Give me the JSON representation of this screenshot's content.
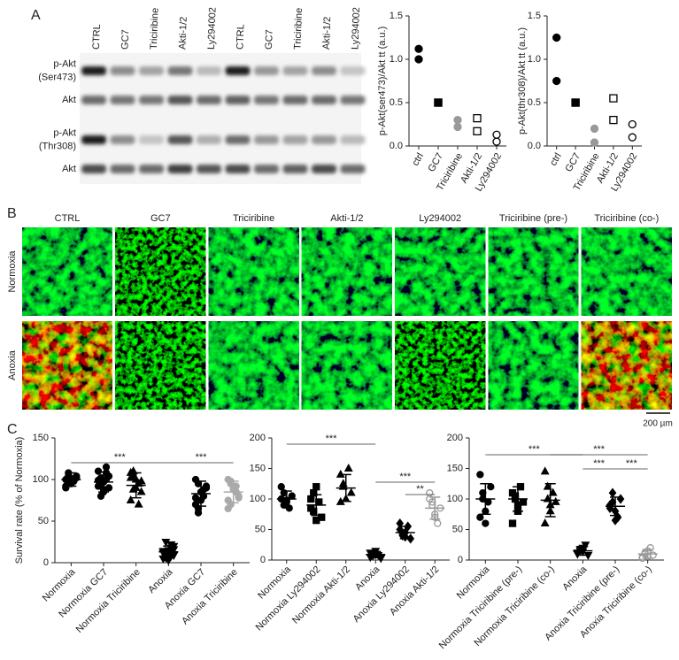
{
  "panel_labels": [
    "A",
    "B",
    "C"
  ],
  "blot": {
    "lanes": [
      "CTRL",
      "GC7",
      "Triciribine",
      "Akti-1/2",
      "Ly294002",
      "CTRL",
      "GC7",
      "Triciribine",
      "Akti-1/2",
      "Ly294002"
    ],
    "rows": [
      [
        "p-Akt",
        "(Ser473)"
      ],
      [
        "Akt"
      ],
      [
        "p-Akt",
        "(Thr308)"
      ],
      [
        "Akt"
      ]
    ]
  },
  "microscopy": {
    "columns": [
      "CTRL",
      "GC7",
      "Triciribine",
      "Akti-1/2",
      "Ly294002",
      "Triciribine (pre-)",
      "Triciribine (co-)"
    ],
    "rows": [
      "Normoxia",
      "Anoxia"
    ],
    "scale_bar": "200 µm"
  },
  "chart_data": [
    {
      "type": "dot",
      "ylabel": "p-Akt(ser473)/Akt tt (a.u.)",
      "categories": [
        "ctrl",
        "GC7",
        "Triciribine",
        "Akti-1/2",
        "Ly294002"
      ],
      "points": [
        [
          1.12,
          1.0
        ],
        [
          0.5,
          0.5
        ],
        [
          0.3,
          0.22
        ],
        [
          0.32,
          0.17
        ],
        [
          0.13,
          0.05
        ]
      ],
      "shapes": [
        "circle",
        "square",
        "circle",
        "square",
        "circle"
      ],
      "colors": [
        "#000000",
        "#000000",
        "#999999",
        "#000000",
        "#000000"
      ],
      "fills": [
        "#000000",
        "#000000",
        "#999999",
        "none",
        "none"
      ],
      "ylim": [
        0,
        1.5
      ],
      "yticks": [
        {
          "value": 0,
          "label": "0.0"
        },
        {
          "value": 0.5,
          "label": "0.5"
        },
        {
          "value": 1,
          "label": "1.0"
        },
        {
          "value": 1.5,
          "label": "1.5"
        }
      ]
    },
    {
      "type": "dot",
      "ylabel": "p-Akt(thr308)/Akt tt (a.u.)",
      "categories": [
        "ctrl",
        "GC7",
        "Triciribine",
        "Akti-1/2",
        "Ly294002"
      ],
      "points": [
        [
          1.25,
          0.75
        ],
        [
          0.5,
          0.5
        ],
        [
          0.2,
          0.04
        ],
        [
          0.55,
          0.3
        ],
        [
          0.25,
          0.1
        ]
      ],
      "shapes": [
        "circle",
        "square",
        "circle",
        "square",
        "circle"
      ],
      "colors": [
        "#000000",
        "#000000",
        "#999999",
        "#000000",
        "#000000"
      ],
      "fills": [
        "#000000",
        "#000000",
        "#999999",
        "none",
        "none"
      ],
      "ylim": [
        0,
        1.5
      ],
      "yticks": [
        {
          "value": 0,
          "label": "0.0"
        },
        {
          "value": 0.5,
          "label": "0.5"
        },
        {
          "value": 1,
          "label": "1.0"
        },
        {
          "value": 1.5,
          "label": "1.5"
        }
      ]
    },
    {
      "type": "dot",
      "ylabel": "Survival rate (% of Normoxia)",
      "categories": [
        "Normoxia",
        "Normoxia GC7",
        "Normoxia Triciribine",
        "Anoxia",
        "Anoxia GC7",
        "Anoxia Triciribine"
      ],
      "points": [
        [
          100,
          105,
          95,
          98,
          102,
          92,
          108,
          96,
          100,
          104,
          90,
          99,
          101
        ],
        [
          110,
          95,
          85,
          100,
          104,
          92,
          80,
          97,
          108,
          90,
          99,
          102,
          88,
          115
        ],
        [
          108,
          105,
          100,
          95,
          85,
          75,
          110,
          90,
          70,
          98,
          102,
          88
        ],
        [
          5,
          10,
          15,
          8,
          20,
          12,
          25,
          3,
          18,
          9,
          14,
          6,
          11,
          22,
          16
        ],
        [
          100,
          95,
          85,
          80,
          90,
          70,
          60,
          75,
          88,
          92,
          78,
          65
        ],
        [
          100,
          95,
          90,
          85,
          80,
          75,
          70,
          88,
          92,
          78,
          65,
          98
        ]
      ],
      "means": [
        100,
        97,
        93,
        13,
        83,
        85
      ],
      "sds": [
        8,
        12,
        15,
        7,
        15,
        13
      ],
      "shapes": [
        "circle",
        "circle",
        "triangle",
        "triangle-down",
        "circle",
        "circle"
      ],
      "colors": [
        "#000000",
        "#000000",
        "#000000",
        "#000000",
        "#000000",
        "#aaaaaa"
      ],
      "fills": [
        "#000000",
        "#000000",
        "#000000",
        "#000000",
        "#000000",
        "#aaaaaa"
      ],
      "ylim": [
        0,
        150
      ],
      "yticks": [
        0,
        50,
        100,
        150
      ],
      "brackets": [
        {
          "from": 0,
          "to": 3,
          "label": "***"
        },
        {
          "from": 3,
          "to": 5,
          "label": "***"
        }
      ]
    },
    {
      "type": "dot",
      "categories": [
        "Normoxia",
        "Normoxia Ly294002",
        "Normoxia Akti-1/2",
        "Anoxia",
        "Anoxia Ly294002",
        "Anoxia Akti-1/2"
      ],
      "points": [
        [
          100,
          110,
          95,
          85,
          105,
          120,
          90,
          98
        ],
        [
          100,
          80,
          120,
          95,
          70,
          85,
          110,
          65
        ],
        [
          140,
          120,
          100,
          150,
          110,
          95,
          125
        ],
        [
          5,
          10,
          15,
          8,
          3,
          12,
          7,
          9
        ],
        [
          50,
          40,
          45,
          55,
          35,
          60,
          42,
          38
        ],
        [
          100,
          90,
          70,
          60,
          85,
          110,
          95,
          75
        ]
      ],
      "means": [
        100,
        90,
        118,
        9,
        45,
        85
      ],
      "sds": [
        13,
        17,
        22,
        5,
        10,
        18
      ],
      "shapes": [
        "circle",
        "square",
        "triangle",
        "triangle-down",
        "diamond",
        "circle"
      ],
      "colors": [
        "#000000",
        "#000000",
        "#000000",
        "#000000",
        "#000000",
        "#999999"
      ],
      "fills": [
        "#000000",
        "#000000",
        "#000000",
        "#000000",
        "#000000",
        "none"
      ],
      "ylim": [
        0,
        200
      ],
      "yticks": [
        0,
        50,
        100,
        150,
        200
      ],
      "brackets": [
        {
          "from": 0,
          "to": 3,
          "label": "***"
        },
        {
          "from": 3,
          "to": 5,
          "label": "***"
        },
        {
          "from": 4,
          "to": 5,
          "label": "**"
        }
      ]
    },
    {
      "type": "dot",
      "categories": [
        "Normoxia",
        "Normoxia Triciribine (pre-)",
        "Normoxia Triciribine (co-)",
        "Anoxia",
        "Anoxia Triciribine (pre-)",
        "Anoxia Triciribine (co-)"
      ],
      "points": [
        [
          140,
          100,
          80,
          95,
          120,
          70,
          110,
          60
        ],
        [
          110,
          100,
          80,
          120,
          95,
          60,
          105,
          90
        ],
        [
          145,
          100,
          80,
          110,
          95,
          60,
          120,
          90
        ],
        [
          10,
          15,
          20,
          25,
          8,
          12,
          18,
          14
        ],
        [
          90,
          110,
          80,
          70,
          100,
          85,
          95,
          65
        ],
        [
          5,
          10,
          15,
          20,
          8,
          3,
          12,
          6
        ]
      ],
      "means": [
        100,
        100,
        98,
        15,
        88,
        10
      ],
      "sds": [
        25,
        20,
        27,
        7,
        15,
        7
      ],
      "shapes": [
        "circle",
        "square",
        "triangle",
        "triangle-down",
        "diamond",
        "circle"
      ],
      "colors": [
        "#000000",
        "#000000",
        "#000000",
        "#000000",
        "#000000",
        "#999999"
      ],
      "fills": [
        "#000000",
        "#000000",
        "#000000",
        "#000000",
        "#000000",
        "none"
      ],
      "ylim": [
        0,
        200
      ],
      "yticks": [
        0,
        50,
        100,
        150,
        200
      ],
      "brackets": [
        {
          "from": 0,
          "to": 3,
          "label": "***"
        },
        {
          "from": 2,
          "to": 5,
          "label": "***"
        },
        {
          "from": 3,
          "to": 4,
          "label": "***"
        },
        {
          "from": 4,
          "to": 5,
          "label": "***"
        }
      ]
    }
  ]
}
